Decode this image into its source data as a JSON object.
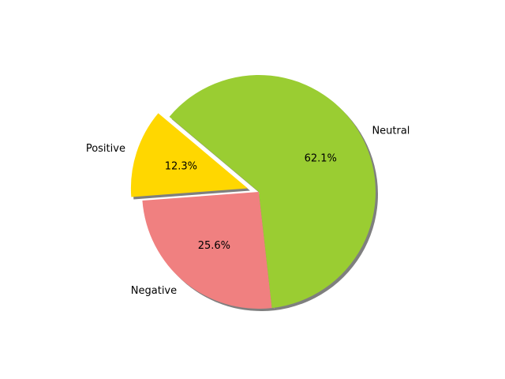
{
  "chart_data": {
    "type": "pie",
    "title": "",
    "labels": [
      "Positive",
      "Negative",
      "Neutral"
    ],
    "values": [
      12.3,
      25.6,
      62.1
    ],
    "percent_labels": [
      "12.3%",
      "25.6%",
      "62.1%"
    ],
    "colors": [
      "#ffd700",
      "#f08080",
      "#9acd32"
    ],
    "explode": [
      0.1,
      0,
      0
    ],
    "start_angle_deg": 140,
    "shadow": true,
    "shadow_color": "#7f7f7f"
  }
}
